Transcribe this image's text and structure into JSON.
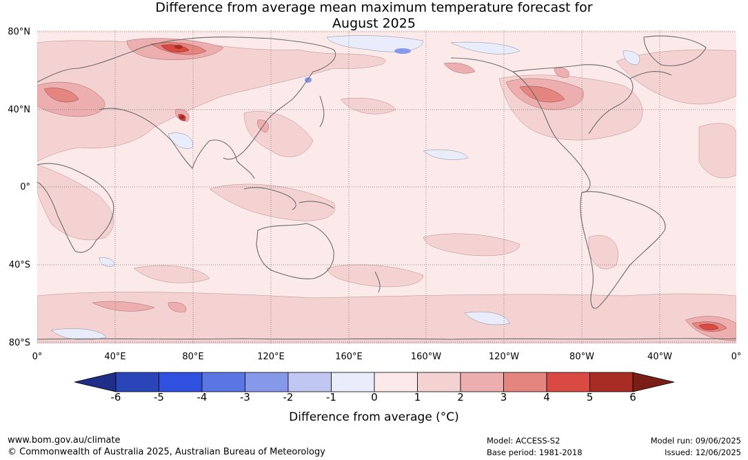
{
  "title": {
    "line1": "Difference from average mean maximum temperature forecast for",
    "line2": "August 2025"
  },
  "lat_labels": [
    "80°N",
    "40°N",
    "0°",
    "40°S",
    "80°S"
  ],
  "lon_labels": [
    "0°",
    "40°E",
    "80°E",
    "120°E",
    "160°E",
    "160°W",
    "120°W",
    "80°W",
    "40°W",
    "0°"
  ],
  "colorbar": {
    "title": "Difference from average (°C)",
    "tick_labels": [
      "-6",
      "-5",
      "-4",
      "-3",
      "-2",
      "-1",
      "0",
      "1",
      "2",
      "3",
      "4",
      "5",
      "6"
    ],
    "colors": [
      "#1f2e87",
      "#2a45b8",
      "#3050e0",
      "#5a75e4",
      "#8698ea",
      "#c0c8f2",
      "#e8ecfb",
      "#fce9e9",
      "#f4d2d2",
      "#ecaeae",
      "#e48580",
      "#d94b42",
      "#a82c24",
      "#7a1d17"
    ]
  },
  "footer": {
    "url": "www.bom.gov.au/climate",
    "copyright": "© Commonwealth of Australia 2025, Australian Bureau of Meteorology",
    "model": "Model: ACCESS-S2",
    "base_period": "Base period: 1981-2018",
    "model_run": "Model run: 09/06/2025",
    "issued": "Issued: 12/06/2025"
  }
}
